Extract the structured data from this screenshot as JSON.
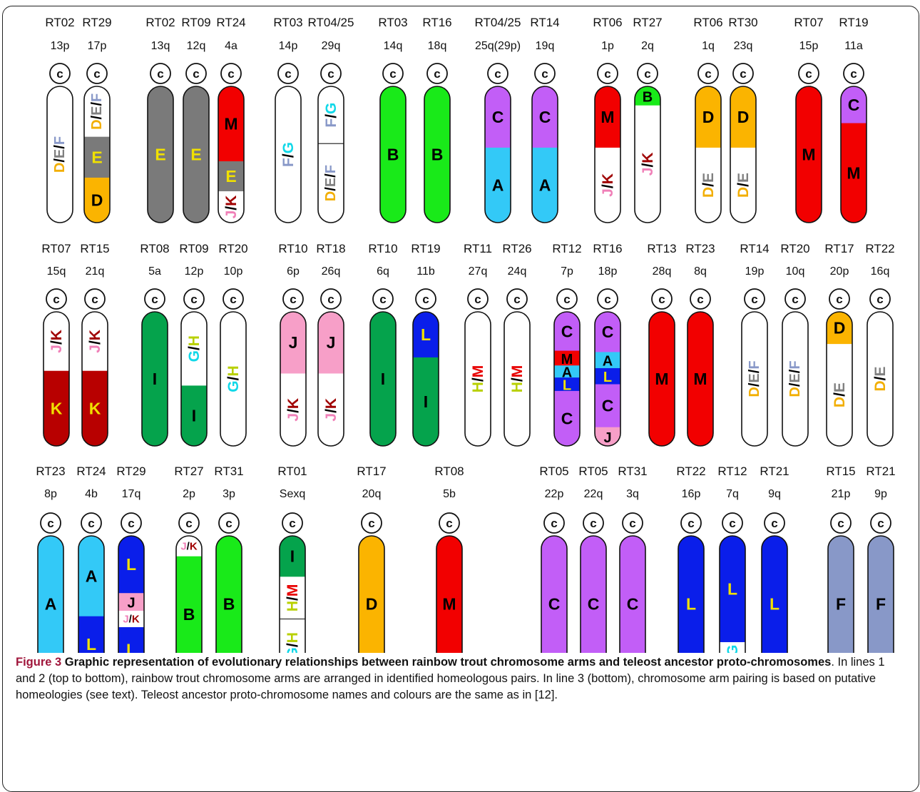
{
  "caption": {
    "label": "Figure 3",
    "title": " Graphic representation of evolutionary relationships between rainbow trout chromosome arms and teleost ancestor proto-chromosomes",
    "body": ". In lines 1 and 2 (top to bottom), rainbow trout chromosome arms are arranged in identified homeologous pairs. In line 3 (bottom), chromosome arm pairing is based on putative homeologies (see text). Teleost ancestor proto-chromosome names and colours are the same as in [12]."
  },
  "centromere_label": "c",
  "colors": {
    "A": "#33c9f7",
    "B": "#19ea19",
    "C": "#c25ef7",
    "D": "#fbb400",
    "E": "#7a7a7a",
    "F": "#8898c8",
    "G": "#22cccc",
    "H": "#b8d000",
    "I": "#05a34c",
    "J": "#f79fc8",
    "K": "#b80000",
    "L": "#0a1eea",
    "M": "#f20000",
    "W": "#ffffff"
  },
  "rows": [
    {
      "chromosomes": [
        {
          "rt": "RT02",
          "arm": "13p",
          "segs": [
            [
              "W",
              1,
              "D/E/F",
              "v"
            ]
          ]
        },
        {
          "rt": "RT29",
          "arm": "17p",
          "segs": [
            [
              "W",
              0.37,
              "D/E/F",
              "v"
            ],
            [
              "E",
              0.3,
              "E",
              "h"
            ],
            [
              "D",
              0.33,
              "D",
              "h"
            ]
          ]
        },
        {
          "rt": "RT02",
          "arm": "13q",
          "segs": [
            [
              "E",
              1,
              "E",
              "h"
            ]
          ]
        },
        {
          "rt": "RT09",
          "arm": "12q",
          "segs": [
            [
              "E",
              1,
              "E",
              "h"
            ]
          ]
        },
        {
          "rt": "RT24",
          "arm": "4a",
          "segs": [
            [
              "M",
              0.55,
              "M",
              "h"
            ],
            [
              "E",
              0.22,
              "E",
              "h"
            ],
            [
              "W",
              0.23,
              "J/K",
              "v"
            ]
          ]
        },
        {
          "rt": "RT03",
          "arm": "14p",
          "segs": [
            [
              "W",
              1,
              "F/G",
              "v"
            ]
          ]
        },
        {
          "rt": "RT04/25",
          "arm": "29q",
          "segs": [
            [
              "W",
              0.42,
              "F/G",
              "v"
            ],
            [
              "W",
              0.58,
              "D/E/F",
              "v"
            ]
          ]
        },
        {
          "rt": "RT03",
          "arm": "14q",
          "segs": [
            [
              "B",
              1,
              "B",
              "h"
            ]
          ]
        },
        {
          "rt": "RT16",
          "arm": "18q",
          "segs": [
            [
              "B",
              1,
              "B",
              "h"
            ]
          ]
        },
        {
          "rt": "RT04/25",
          "arm": "25q(29p)",
          "segs": [
            [
              "C",
              0.45,
              "C",
              "h"
            ],
            [
              "A",
              0.55,
              "A",
              "h"
            ]
          ]
        },
        {
          "rt": "RT14",
          "arm": "19q",
          "segs": [
            [
              "C",
              0.45,
              "C",
              "h"
            ],
            [
              "A",
              0.55,
              "A",
              "h"
            ]
          ]
        },
        {
          "rt": "RT06",
          "arm": "1p",
          "segs": [
            [
              "M",
              0.45,
              "M",
              "h"
            ],
            [
              "W",
              0.55,
              "J/K",
              "v"
            ]
          ]
        },
        {
          "rt": "RT27",
          "arm": "2q",
          "segs": [
            [
              "B",
              0.14,
              "B",
              "h"
            ],
            [
              "W",
              0.86,
              "J/K",
              "v"
            ]
          ]
        },
        {
          "rt": "RT06",
          "arm": "1q",
          "segs": [
            [
              "D",
              0.45,
              "D",
              "h"
            ],
            [
              "W",
              0.55,
              "D/E",
              "v"
            ]
          ]
        },
        {
          "rt": "RT30",
          "arm": "23q",
          "segs": [
            [
              "D",
              0.45,
              "D",
              "h"
            ],
            [
              "W",
              0.55,
              "D/E",
              "v"
            ]
          ]
        },
        {
          "rt": "RT07",
          "arm": "15p",
          "segs": [
            [
              "M",
              1,
              "M",
              "h"
            ]
          ]
        },
        {
          "rt": "RT19",
          "arm": "11a",
          "segs": [
            [
              "C",
              0.27,
              "C",
              "h"
            ],
            [
              "M",
              0.73,
              "M",
              "h"
            ]
          ]
        }
      ]
    },
    {
      "chromosomes": [
        {
          "rt": "RT07",
          "arm": "15q",
          "segs": [
            [
              "W",
              0.44,
              "J/K",
              "v"
            ],
            [
              "K",
              0.56,
              "K",
              "h"
            ]
          ]
        },
        {
          "rt": "RT15",
          "arm": "21q",
          "segs": [
            [
              "W",
              0.44,
              "J/K",
              "v"
            ],
            [
              "K",
              0.56,
              "K",
              "h"
            ]
          ]
        },
        {
          "rt": "RT08",
          "arm": "5a",
          "segs": [
            [
              "I",
              1,
              "I",
              "h"
            ]
          ]
        },
        {
          "rt": "RT09",
          "arm": "12p",
          "segs": [
            [
              "W",
              0.55,
              "G/H",
              "v"
            ],
            [
              "I",
              0.45,
              "I",
              "h"
            ]
          ]
        },
        {
          "rt": "RT20",
          "arm": "10p",
          "segs": [
            [
              "W",
              1,
              "G/H",
              "v"
            ]
          ]
        },
        {
          "rt": "RT10",
          "arm": "6p",
          "segs": [
            [
              "J",
              0.46,
              "J",
              "h"
            ],
            [
              "W",
              0.54,
              "J/K",
              "v"
            ]
          ]
        },
        {
          "rt": "RT18",
          "arm": "26q",
          "segs": [
            [
              "J",
              0.46,
              "J",
              "h"
            ],
            [
              "W",
              0.54,
              "J/K",
              "v"
            ]
          ]
        },
        {
          "rt": "RT10",
          "arm": "6q",
          "segs": [
            [
              "I",
              1,
              "I",
              "h"
            ]
          ]
        },
        {
          "rt": "RT19",
          "arm": "11b",
          "segs": [
            [
              "L",
              0.34,
              "L",
              "h"
            ],
            [
              "I",
              0.66,
              "I",
              "h"
            ]
          ]
        },
        {
          "rt": "RT11",
          "arm": "27q",
          "segs": [
            [
              "W",
              1,
              "H/M",
              "v"
            ]
          ]
        },
        {
          "rt": "RT26",
          "arm": "24q",
          "segs": [
            [
              "W",
              1,
              "H/M",
              "v"
            ]
          ]
        },
        {
          "rt": "RT12",
          "arm": "7p",
          "segs": [
            [
              "C",
              0.29,
              "C",
              "h"
            ],
            [
              "M",
              0.11,
              "M",
              "h"
            ],
            [
              "A",
              0.09,
              "A",
              "h"
            ],
            [
              "L",
              0.1,
              "L",
              "h"
            ],
            [
              "C",
              0.41,
              "C",
              "h"
            ]
          ]
        },
        {
          "rt": "RT16",
          "arm": "18p",
          "segs": [
            [
              "C",
              0.3,
              "C",
              "h"
            ],
            [
              "A",
              0.12,
              "A",
              "h"
            ],
            [
              "L",
              0.12,
              "L",
              "h"
            ],
            [
              "C",
              0.32,
              "C",
              "h"
            ],
            [
              "J",
              0.14,
              "J",
              "h"
            ]
          ]
        },
        {
          "rt": "RT13",
          "arm": "28q",
          "segs": [
            [
              "M",
              1,
              "M",
              "h"
            ]
          ]
        },
        {
          "rt": "RT23",
          "arm": "8q",
          "segs": [
            [
              "M",
              1,
              "M",
              "h"
            ]
          ]
        },
        {
          "rt": "RT14",
          "arm": "19p",
          "segs": [
            [
              "W",
              1,
              "D/E/F",
              "v"
            ]
          ]
        },
        {
          "rt": "RT20",
          "arm": "10q",
          "segs": [
            [
              "W",
              1,
              "D/E/F",
              "v"
            ]
          ]
        },
        {
          "rt": "RT17",
          "arm": "20p",
          "segs": [
            [
              "D",
              0.24,
              "D",
              "h"
            ],
            [
              "W",
              0.76,
              "D/E",
              "v"
            ]
          ]
        },
        {
          "rt": "RT22",
          "arm": "16q",
          "segs": [
            [
              "W",
              1,
              "D/E",
              "v"
            ]
          ]
        }
      ]
    },
    {
      "chromosomes": [
        {
          "rt": "RT23",
          "arm": "8p",
          "segs": [
            [
              "A",
              1,
              "A",
              "h"
            ]
          ]
        },
        {
          "rt": "RT24",
          "arm": "4b",
          "segs": [
            [
              "A",
              0.59,
              "A",
              "h"
            ],
            [
              "L",
              0.41,
              "L",
              "h"
            ]
          ]
        },
        {
          "rt": "RT29",
          "arm": "17q",
          "segs": [
            [
              "L",
              0.42,
              "L",
              "h"
            ],
            [
              "J",
              0.13,
              "J",
              "h"
            ],
            [
              "W",
              0.12,
              "J/K",
              "h"
            ],
            [
              "L",
              0.33,
              "L",
              "h"
            ]
          ]
        },
        {
          "rt": "RT27",
          "arm": "2p",
          "segs": [
            [
              "W",
              0.15,
              "J/K",
              "h"
            ],
            [
              "B",
              0.85,
              "B",
              "h"
            ]
          ]
        },
        {
          "rt": "RT31",
          "arm": "3p",
          "segs": [
            [
              "B",
              1,
              "B",
              "h"
            ]
          ]
        },
        {
          "rt": "RT01",
          "arm": "Sexq",
          "segs": [
            [
              "I",
              0.3,
              "I",
              "h"
            ],
            [
              "W",
              0.31,
              "H/M",
              "v"
            ],
            [
              "W",
              0.39,
              "G/H",
              "v"
            ]
          ]
        },
        {
          "rt": "RT17",
          "arm": "20q",
          "segs": [
            [
              "D",
              1,
              "D",
              "h"
            ]
          ]
        },
        {
          "rt": "RT08",
          "arm": "5b",
          "segs": [
            [
              "M",
              1,
              "M",
              "h"
            ]
          ]
        },
        {
          "rt": "RT05",
          "arm": "22p",
          "segs": [
            [
              "C",
              1,
              "C",
              "h"
            ]
          ]
        },
        {
          "rt": "RT05",
          "arm": "22q",
          "segs": [
            [
              "C",
              1,
              "C",
              "h"
            ]
          ]
        },
        {
          "rt": "RT31",
          "arm": "3q",
          "segs": [
            [
              "C",
              1,
              "C",
              "h"
            ]
          ]
        },
        {
          "rt": "RT22",
          "arm": "16p",
          "segs": [
            [
              "L",
              1,
              "L",
              "h"
            ]
          ]
        },
        {
          "rt": "RT12",
          "arm": "7q",
          "segs": [
            [
              "L",
              0.78,
              "L",
              "h"
            ],
            [
              "W",
              0.22,
              "F/G",
              "v"
            ]
          ]
        },
        {
          "rt": "RT21",
          "arm": "9q",
          "segs": [
            [
              "L",
              1,
              "L",
              "h"
            ]
          ]
        },
        {
          "rt": "RT15",
          "arm": "21p",
          "segs": [
            [
              "F",
              1,
              "F",
              "h"
            ]
          ]
        },
        {
          "rt": "RT21",
          "arm": "9p",
          "segs": [
            [
              "F",
              1,
              "F",
              "h"
            ]
          ]
        }
      ]
    }
  ]
}
